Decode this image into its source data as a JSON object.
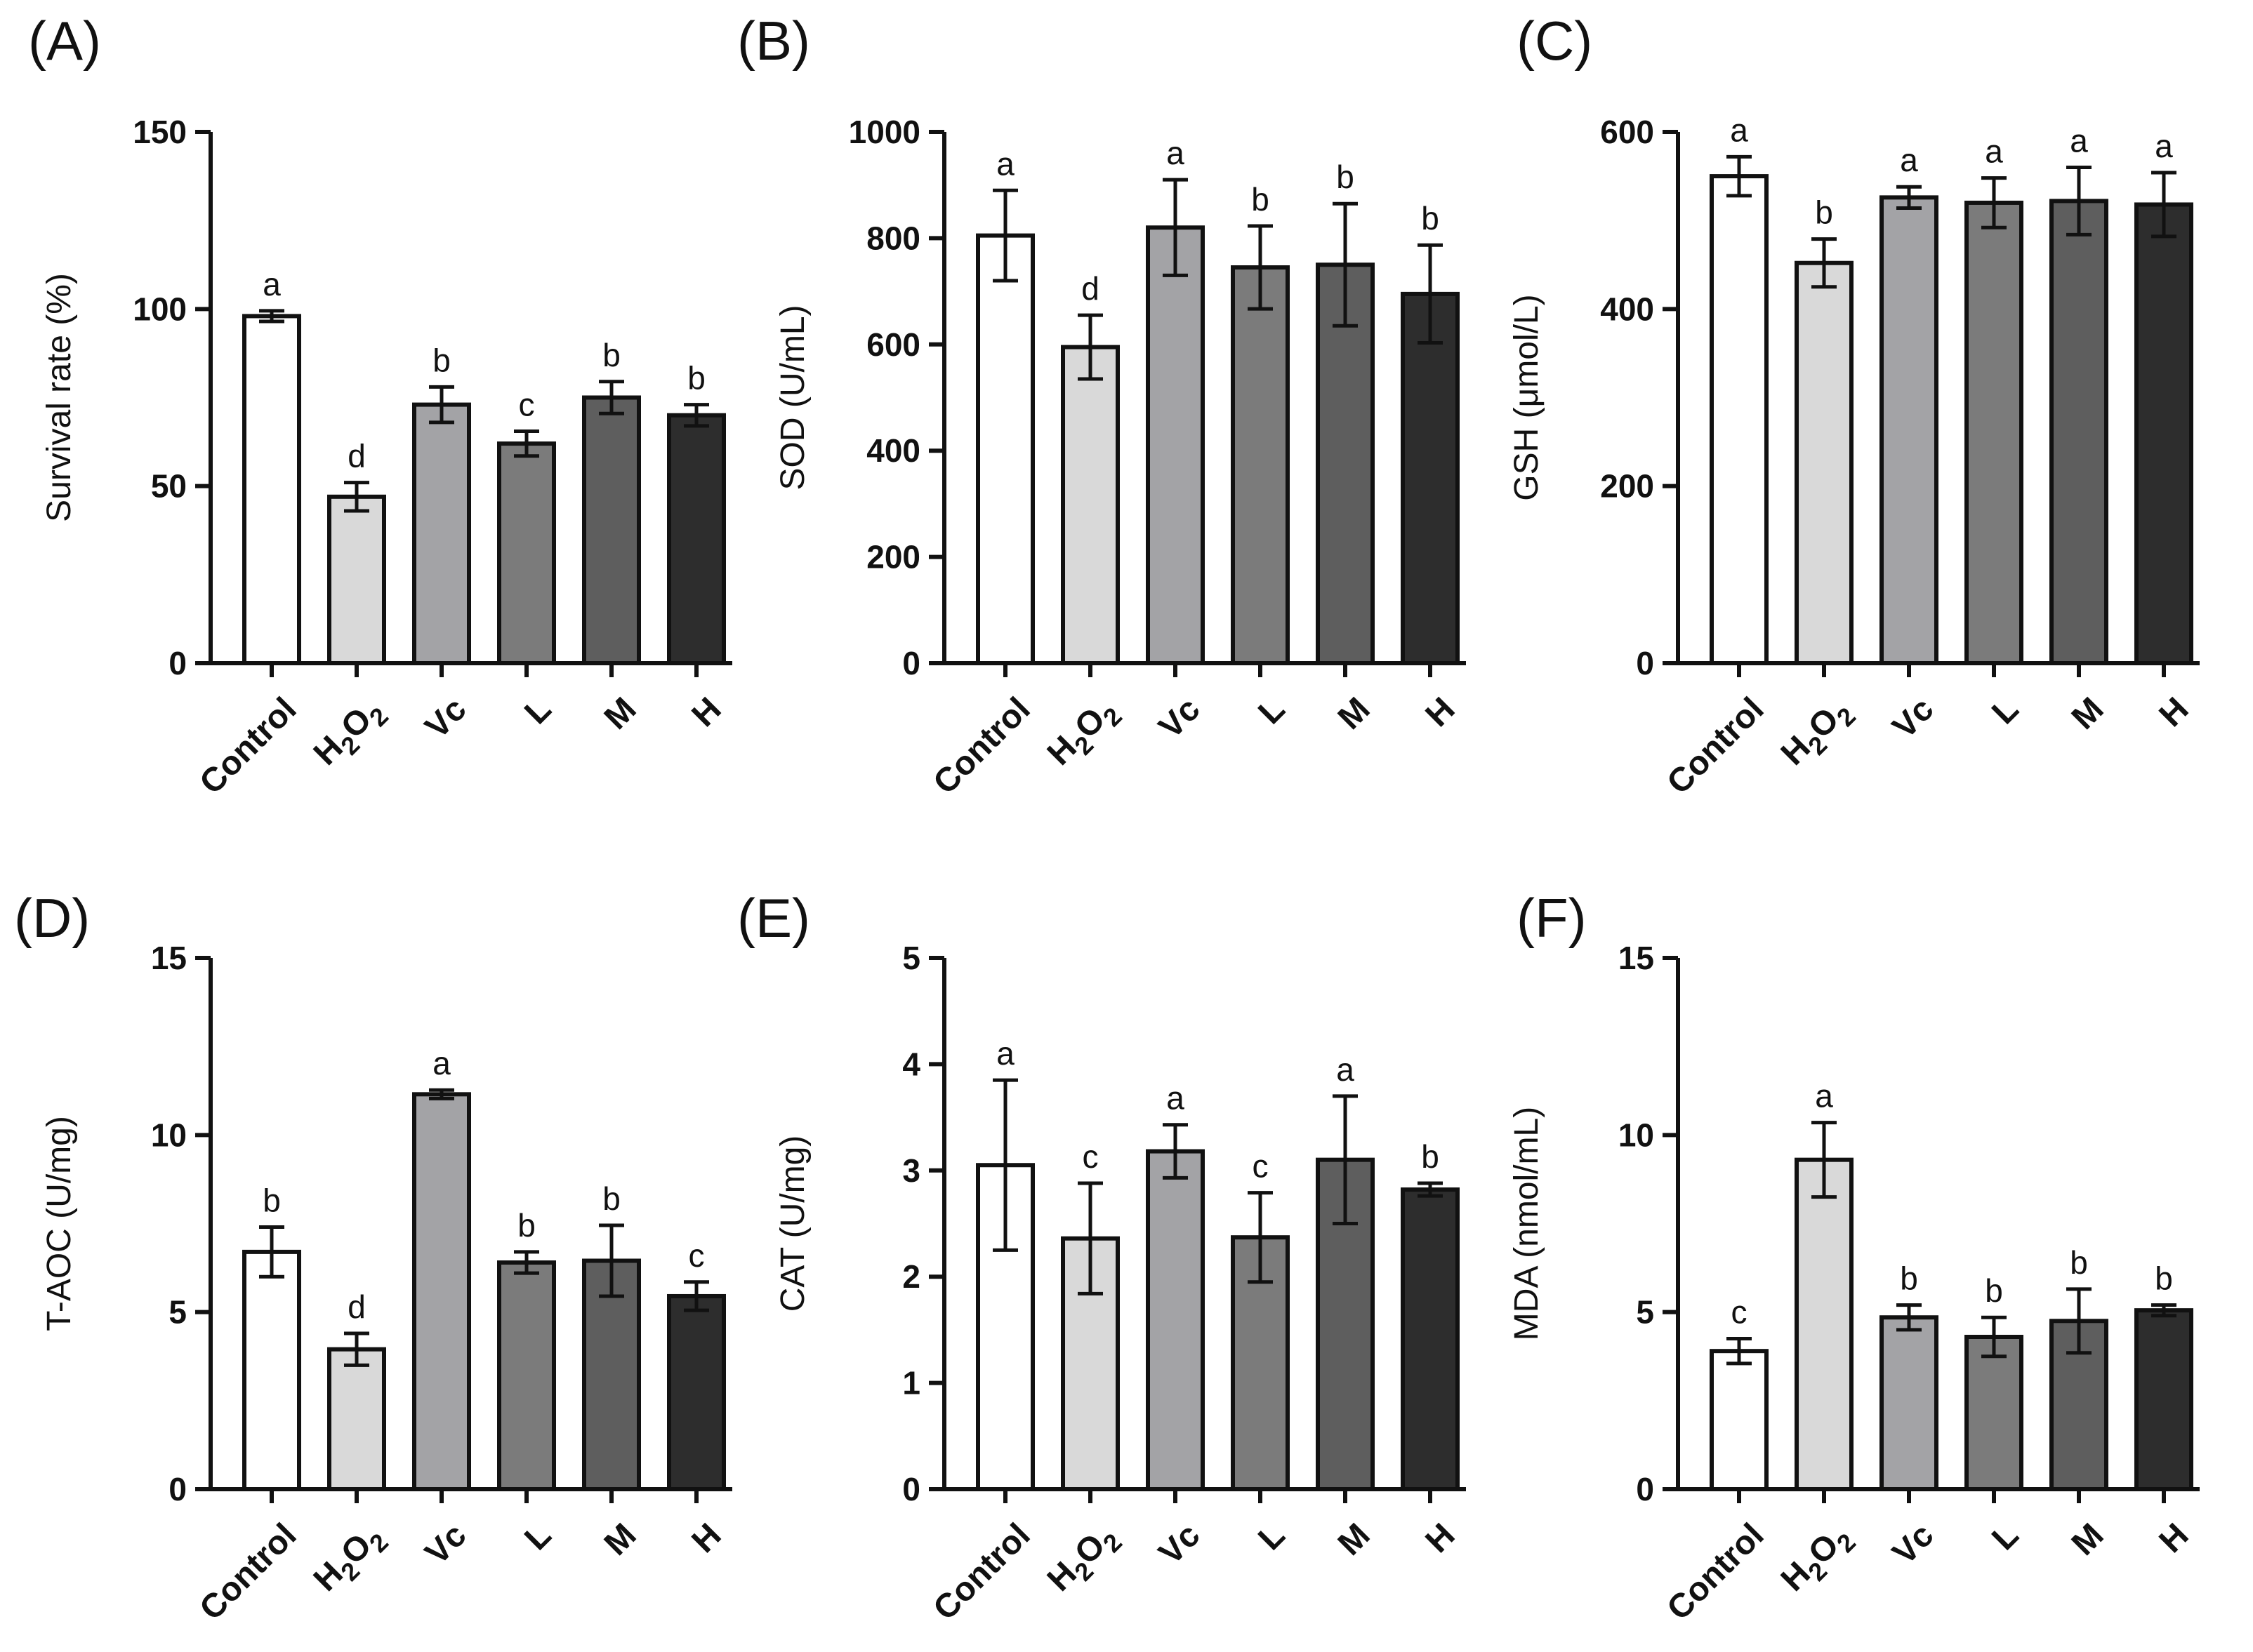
{
  "colors": {
    "Control": "#ffffff",
    "H2O2": "#d9d9d9",
    "Vc": "#a3a3a6",
    "L": "#7b7b7b",
    "M": "#5e5e5e",
    "H": "#2d2d2d",
    "axis": "#111111"
  },
  "chart_data": [
    {
      "type": "bar",
      "panel_label": "(A)",
      "ylabel": "Survival rate (%)",
      "ylim": [
        0,
        150
      ],
      "yticks": [
        0,
        50,
        100,
        150
      ],
      "categories": [
        "Control",
        "H2O2",
        "Vc",
        "L",
        "M",
        "H"
      ],
      "values": [
        98,
        47,
        73,
        62,
        75,
        70
      ],
      "errors": [
        1.5,
        4,
        5,
        3.5,
        4.5,
        3
      ],
      "significance": [
        "a",
        "d",
        "b",
        "c",
        "b",
        "b"
      ]
    },
    {
      "type": "bar",
      "panel_label": "(B)",
      "ylabel": "SOD (U/mL)",
      "ylim": [
        0,
        1000
      ],
      "yticks": [
        0,
        200,
        400,
        600,
        800,
        1000
      ],
      "categories": [
        "Control",
        "H2O2",
        "Vc",
        "L",
        "M",
        "H"
      ],
      "values": [
        805,
        595,
        820,
        745,
        750,
        695
      ],
      "errors": [
        85,
        60,
        90,
        78,
        115,
        92
      ],
      "significance": [
        "a",
        "d",
        "a",
        "b",
        "b",
        "b"
      ]
    },
    {
      "type": "bar",
      "panel_label": "(C)",
      "ylabel": "GSH (μmol/L)",
      "ylim": [
        0,
        600
      ],
      "yticks": [
        0,
        200,
        400,
        600
      ],
      "categories": [
        "Control",
        "H2O2",
        "Vc",
        "L",
        "M",
        "H"
      ],
      "values": [
        550,
        452,
        526,
        520,
        522,
        518
      ],
      "errors": [
        22,
        27,
        12,
        28,
        38,
        36
      ],
      "significance": [
        "a",
        "b",
        "a",
        "a",
        "a",
        "a"
      ]
    },
    {
      "type": "bar",
      "panel_label": "(D)",
      "ylabel": "T-AOC (U/mg)",
      "ylim": [
        0,
        15
      ],
      "yticks": [
        0,
        5,
        10,
        15
      ],
      "categories": [
        "Control",
        "H2O2",
        "Vc",
        "L",
        "M",
        "H"
      ],
      "values": [
        6.7,
        3.95,
        11.15,
        6.4,
        6.45,
        5.45
      ],
      "errors": [
        0.7,
        0.45,
        0.12,
        0.3,
        1.0,
        0.4
      ],
      "significance": [
        "b",
        "d",
        "a",
        "b",
        "b",
        "c"
      ]
    },
    {
      "type": "bar",
      "panel_label": "(E)",
      "ylabel": "CAT (U/mg)",
      "ylim": [
        0,
        5
      ],
      "yticks": [
        0,
        1,
        2,
        3,
        4,
        5
      ],
      "categories": [
        "Control",
        "H2O2",
        "Vc",
        "L",
        "M",
        "H"
      ],
      "values": [
        3.05,
        2.36,
        3.18,
        2.37,
        3.1,
        2.82
      ],
      "errors": [
        0.8,
        0.52,
        0.25,
        0.42,
        0.6,
        0.06
      ],
      "significance": [
        "a",
        "c",
        "a",
        "c",
        "a",
        "b"
      ]
    },
    {
      "type": "bar",
      "panel_label": "(F)",
      "ylabel": "MDA (nmol/mL)",
      "ylim": [
        0,
        15
      ],
      "yticks": [
        0,
        5,
        10,
        15
      ],
      "categories": [
        "Control",
        "H2O2",
        "Vc",
        "L",
        "M",
        "H"
      ],
      "values": [
        3.9,
        9.3,
        4.85,
        4.3,
        4.75,
        5.05
      ],
      "errors": [
        0.35,
        1.05,
        0.35,
        0.55,
        0.9,
        0.15
      ],
      "significance": [
        "c",
        "a",
        "b",
        "b",
        "b",
        "b"
      ]
    }
  ]
}
